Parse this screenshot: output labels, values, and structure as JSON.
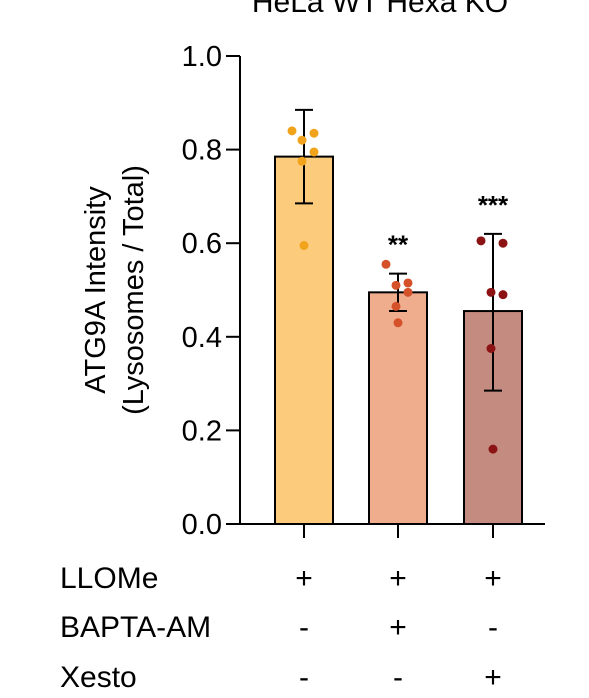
{
  "chart_data": {
    "type": "bar",
    "title": "HeLa WT  Hexa KO",
    "ylabel_line1": "ATG9A Intensity",
    "ylabel_line2": "(Lysosomes / Total)",
    "ylim": [
      0,
      1.0
    ],
    "yticks": [
      0.0,
      0.2,
      0.4,
      0.6,
      0.8,
      1.0
    ],
    "ytick_labels": [
      "0.0",
      "0.2",
      "0.4",
      "0.6",
      "0.8",
      "1.0"
    ],
    "grid": false,
    "legend": "none",
    "bars": [
      {
        "value": 0.785,
        "err_low": 0.685,
        "err_high": 0.885,
        "fill": "#FDCB7C",
        "dot": "#F2A31C",
        "points": [
          0.84,
          0.835,
          0.82,
          0.795,
          0.775,
          0.595
        ],
        "significance": ""
      },
      {
        "value": 0.495,
        "err_low": 0.455,
        "err_high": 0.535,
        "fill": "#F0AD8E",
        "dot": "#D4512A",
        "points": [
          0.555,
          0.515,
          0.51,
          0.495,
          0.465,
          0.43
        ],
        "significance": "**"
      },
      {
        "value": 0.455,
        "err_low": 0.285,
        "err_high": 0.62,
        "fill": "#C48B80",
        "dot": "#8C1313",
        "points": [
          0.605,
          0.6,
          0.495,
          0.49,
          0.375,
          0.16
        ],
        "significance": "***"
      }
    ],
    "conditions": [
      {
        "name": "LLOMe",
        "values": [
          "+",
          "+",
          "+"
        ]
      },
      {
        "name": "BAPTA-AM",
        "values": [
          "-",
          "+",
          "-"
        ]
      },
      {
        "name": "Xesto",
        "values": [
          "-",
          "-",
          "+"
        ]
      }
    ]
  }
}
